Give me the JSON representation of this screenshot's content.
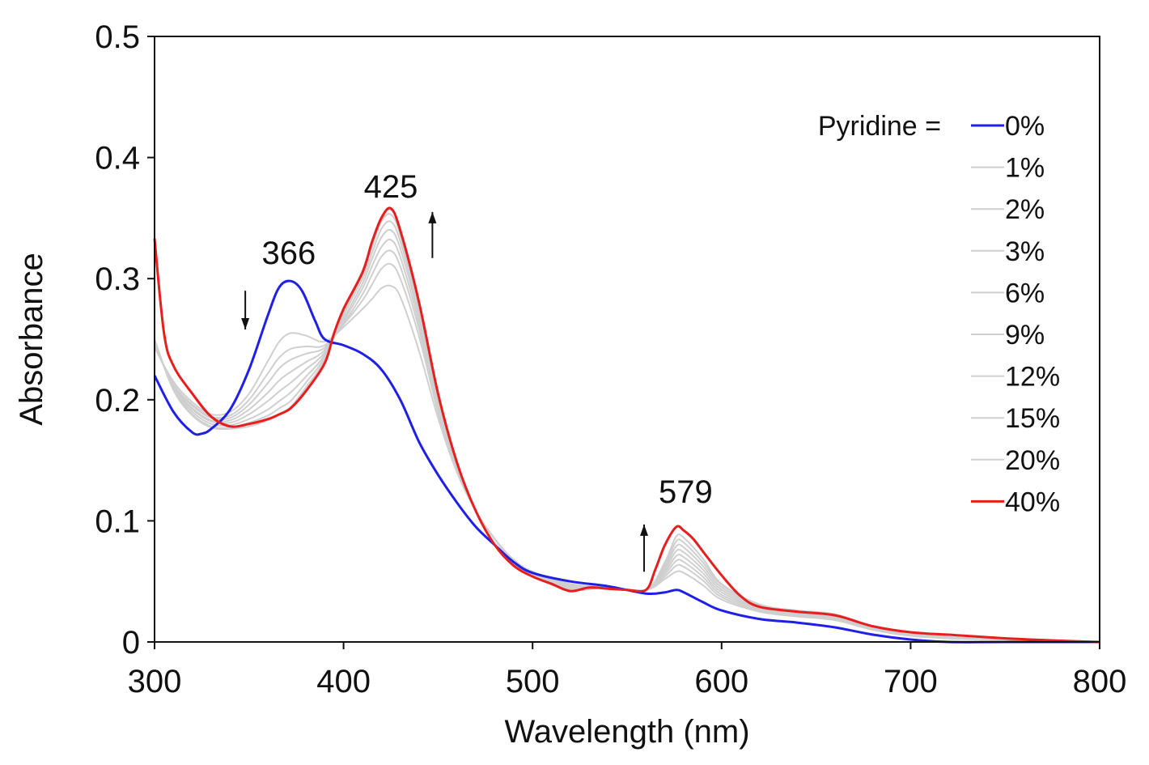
{
  "chart_data": {
    "type": "line",
    "title": "",
    "xlabel": "Wavelength (nm)",
    "ylabel": "Absorbance",
    "xlim": [
      300,
      800
    ],
    "ylim": [
      0,
      0.5
    ],
    "xticks": [
      300,
      400,
      500,
      600,
      700,
      800
    ],
    "xtick_labels": [
      "300",
      "400",
      "500",
      "600",
      "700",
      "800"
    ],
    "yticks": [
      0,
      0.1,
      0.2,
      0.3,
      0.4,
      0.5
    ],
    "ytick_labels": [
      "0",
      "0.1",
      "0.2",
      "0.3",
      "0.4",
      "0.5"
    ],
    "grid": false,
    "legend_title": "Pyridine =",
    "legend_position": "top-right",
    "series": [
      {
        "name": "0%",
        "color": "#1f1fe6",
        "x": [
          300,
          310,
          320,
          325,
          330,
          340,
          350,
          360,
          366,
          372,
          378,
          385,
          390,
          400,
          410,
          420,
          430,
          440,
          450,
          460,
          470,
          480,
          490,
          500,
          520,
          540,
          560,
          570,
          576,
          580,
          590,
          600,
          620,
          640,
          660,
          680,
          700,
          720,
          750,
          800
        ],
        "y": [
          0.22,
          0.19,
          0.173,
          0.172,
          0.176,
          0.192,
          0.225,
          0.27,
          0.293,
          0.298,
          0.29,
          0.265,
          0.25,
          0.245,
          0.238,
          0.225,
          0.2,
          0.165,
          0.138,
          0.115,
          0.095,
          0.08,
          0.066,
          0.057,
          0.05,
          0.046,
          0.04,
          0.041,
          0.043,
          0.041,
          0.033,
          0.026,
          0.019,
          0.016,
          0.012,
          0.006,
          0.002,
          0.0,
          0.0,
          0.0
        ]
      },
      {
        "name": "1%",
        "color": "#cfcfcf",
        "x": [
          300,
          310,
          320,
          330,
          340,
          350,
          360,
          366,
          372,
          380,
          390,
          400,
          410,
          415,
          420,
          425,
          430,
          440,
          450,
          460,
          470,
          480,
          490,
          500,
          520,
          540,
          560,
          570,
          576,
          580,
          590,
          600,
          620,
          640,
          660,
          680,
          700,
          720,
          750,
          800
        ],
        "y": [
          0.243,
          0.215,
          0.198,
          0.188,
          0.19,
          0.205,
          0.232,
          0.248,
          0.255,
          0.253,
          0.248,
          0.26,
          0.275,
          0.283,
          0.292,
          0.294,
          0.285,
          0.24,
          0.185,
          0.14,
          0.108,
          0.085,
          0.068,
          0.058,
          0.048,
          0.045,
          0.043,
          0.052,
          0.058,
          0.057,
          0.047,
          0.035,
          0.025,
          0.021,
          0.018,
          0.01,
          0.005,
          0.003,
          0.002,
          0.0
        ]
      },
      {
        "name": "2%",
        "color": "#cfcfcf",
        "x": [
          300,
          310,
          320,
          330,
          340,
          350,
          360,
          366,
          372,
          380,
          390,
          400,
          410,
          415,
          420,
          425,
          430,
          440,
          450,
          460,
          470,
          480,
          490,
          500,
          520,
          540,
          560,
          570,
          576,
          580,
          590,
          600,
          620,
          640,
          660,
          680,
          700,
          720,
          750,
          800
        ],
        "y": [
          0.244,
          0.213,
          0.196,
          0.186,
          0.187,
          0.2,
          0.222,
          0.235,
          0.242,
          0.244,
          0.245,
          0.262,
          0.282,
          0.295,
          0.308,
          0.312,
          0.3,
          0.252,
          0.19,
          0.142,
          0.108,
          0.085,
          0.067,
          0.057,
          0.047,
          0.045,
          0.043,
          0.054,
          0.063,
          0.062,
          0.051,
          0.037,
          0.026,
          0.022,
          0.019,
          0.011,
          0.006,
          0.003,
          0.002,
          0.0
        ]
      },
      {
        "name": "3%",
        "color": "#cfcfcf",
        "x": [
          300,
          310,
          320,
          330,
          340,
          350,
          360,
          366,
          372,
          380,
          390,
          400,
          410,
          415,
          420,
          425,
          430,
          440,
          450,
          460,
          470,
          480,
          490,
          500,
          520,
          540,
          560,
          570,
          576,
          580,
          590,
          600,
          620,
          640,
          660,
          680,
          700,
          720,
          750,
          800
        ],
        "y": [
          0.245,
          0.212,
          0.195,
          0.185,
          0.185,
          0.196,
          0.214,
          0.226,
          0.233,
          0.238,
          0.243,
          0.263,
          0.287,
          0.303,
          0.318,
          0.323,
          0.31,
          0.258,
          0.193,
          0.143,
          0.108,
          0.085,
          0.066,
          0.056,
          0.046,
          0.045,
          0.043,
          0.056,
          0.067,
          0.066,
          0.054,
          0.039,
          0.027,
          0.022,
          0.019,
          0.011,
          0.006,
          0.003,
          0.002,
          0.0
        ]
      },
      {
        "name": "6%",
        "color": "#cfcfcf",
        "x": [
          300,
          310,
          320,
          330,
          340,
          350,
          360,
          366,
          372,
          380,
          390,
          400,
          410,
          415,
          420,
          425,
          430,
          440,
          450,
          460,
          470,
          480,
          490,
          500,
          520,
          540,
          560,
          570,
          576,
          580,
          590,
          600,
          620,
          640,
          660,
          680,
          700,
          720,
          750,
          800
        ],
        "y": [
          0.246,
          0.211,
          0.193,
          0.183,
          0.183,
          0.192,
          0.206,
          0.216,
          0.223,
          0.231,
          0.241,
          0.265,
          0.292,
          0.31,
          0.326,
          0.332,
          0.318,
          0.263,
          0.196,
          0.144,
          0.108,
          0.085,
          0.066,
          0.056,
          0.046,
          0.045,
          0.043,
          0.058,
          0.071,
          0.07,
          0.057,
          0.041,
          0.028,
          0.023,
          0.02,
          0.011,
          0.006,
          0.003,
          0.002,
          0.0
        ]
      },
      {
        "name": "9%",
        "color": "#cfcfcf",
        "x": [
          300,
          310,
          320,
          330,
          340,
          350,
          360,
          366,
          372,
          380,
          390,
          400,
          410,
          415,
          420,
          425,
          430,
          440,
          450,
          460,
          470,
          480,
          490,
          500,
          520,
          540,
          560,
          570,
          576,
          580,
          590,
          600,
          620,
          640,
          660,
          680,
          700,
          720,
          750,
          800
        ],
        "y": [
          0.247,
          0.21,
          0.192,
          0.182,
          0.181,
          0.188,
          0.199,
          0.207,
          0.214,
          0.225,
          0.239,
          0.267,
          0.296,
          0.316,
          0.334,
          0.34,
          0.325,
          0.268,
          0.198,
          0.145,
          0.108,
          0.085,
          0.065,
          0.055,
          0.045,
          0.045,
          0.043,
          0.06,
          0.075,
          0.074,
          0.06,
          0.043,
          0.029,
          0.024,
          0.021,
          0.012,
          0.007,
          0.004,
          0.002,
          0.0
        ]
      },
      {
        "name": "12%",
        "color": "#cfcfcf",
        "x": [
          300,
          310,
          320,
          330,
          340,
          350,
          360,
          366,
          372,
          380,
          390,
          400,
          410,
          415,
          420,
          425,
          430,
          440,
          450,
          460,
          470,
          480,
          490,
          500,
          520,
          540,
          560,
          570,
          576,
          580,
          590,
          600,
          620,
          640,
          660,
          680,
          700,
          720,
          750,
          800
        ],
        "y": [
          0.248,
          0.209,
          0.19,
          0.18,
          0.179,
          0.184,
          0.192,
          0.199,
          0.206,
          0.219,
          0.237,
          0.27,
          0.3,
          0.321,
          0.341,
          0.347,
          0.331,
          0.272,
          0.2,
          0.146,
          0.108,
          0.085,
          0.065,
          0.055,
          0.044,
          0.045,
          0.043,
          0.062,
          0.079,
          0.078,
          0.063,
          0.045,
          0.03,
          0.025,
          0.022,
          0.012,
          0.007,
          0.004,
          0.002,
          0.0
        ]
      },
      {
        "name": "15%",
        "color": "#cfcfcf",
        "x": [
          300,
          310,
          320,
          330,
          340,
          350,
          360,
          366,
          372,
          380,
          390,
          400,
          410,
          415,
          420,
          425,
          430,
          440,
          450,
          460,
          470,
          480,
          490,
          500,
          520,
          540,
          560,
          570,
          576,
          580,
          590,
          600,
          620,
          640,
          660,
          680,
          700,
          720,
          750,
          800
        ],
        "y": [
          0.249,
          0.208,
          0.188,
          0.178,
          0.177,
          0.181,
          0.187,
          0.193,
          0.199,
          0.214,
          0.235,
          0.272,
          0.304,
          0.326,
          0.347,
          0.353,
          0.336,
          0.275,
          0.202,
          0.147,
          0.108,
          0.085,
          0.064,
          0.054,
          0.044,
          0.045,
          0.043,
          0.064,
          0.083,
          0.082,
          0.066,
          0.047,
          0.031,
          0.025,
          0.022,
          0.012,
          0.007,
          0.004,
          0.002,
          0.0
        ]
      },
      {
        "name": "20%",
        "color": "#cfcfcf",
        "x": [
          300,
          310,
          320,
          330,
          340,
          350,
          360,
          366,
          372,
          380,
          390,
          400,
          410,
          415,
          420,
          425,
          430,
          440,
          450,
          460,
          470,
          480,
          490,
          500,
          520,
          540,
          560,
          570,
          576,
          580,
          590,
          600,
          620,
          640,
          660,
          680,
          700,
          720,
          750,
          800
        ],
        "y": [
          0.25,
          0.208,
          0.187,
          0.177,
          0.176,
          0.178,
          0.183,
          0.188,
          0.194,
          0.21,
          0.233,
          0.274,
          0.307,
          0.33,
          0.351,
          0.357,
          0.34,
          0.278,
          0.203,
          0.147,
          0.108,
          0.085,
          0.064,
          0.054,
          0.043,
          0.045,
          0.043,
          0.066,
          0.087,
          0.086,
          0.069,
          0.048,
          0.031,
          0.026,
          0.023,
          0.013,
          0.008,
          0.004,
          0.002,
          0.0
        ]
      },
      {
        "name": "40%",
        "color": "#e61e1e",
        "x": [
          300,
          305,
          310,
          320,
          330,
          340,
          350,
          360,
          366,
          372,
          380,
          390,
          395,
          400,
          410,
          415,
          420,
          425,
          430,
          440,
          450,
          460,
          470,
          480,
          490,
          500,
          510,
          520,
          530,
          540,
          550,
          560,
          565,
          570,
          576,
          580,
          585,
          590,
          600,
          610,
          620,
          640,
          660,
          680,
          700,
          720,
          750,
          780,
          800
        ],
        "y": [
          0.333,
          0.255,
          0.228,
          0.205,
          0.186,
          0.178,
          0.18,
          0.184,
          0.188,
          0.193,
          0.207,
          0.23,
          0.255,
          0.275,
          0.305,
          0.33,
          0.35,
          0.358,
          0.34,
          0.28,
          0.205,
          0.148,
          0.108,
          0.08,
          0.063,
          0.054,
          0.048,
          0.042,
          0.045,
          0.044,
          0.043,
          0.043,
          0.06,
          0.08,
          0.095,
          0.092,
          0.085,
          0.075,
          0.055,
          0.038,
          0.029,
          0.025,
          0.022,
          0.013,
          0.008,
          0.006,
          0.003,
          0.001,
          0.0
        ]
      }
    ],
    "annotations": [
      {
        "text": "366",
        "x": 371,
        "y": 0.312
      },
      {
        "text": "425",
        "x": 425,
        "y": 0.367
      },
      {
        "text": "579",
        "x": 581,
        "y": 0.115
      }
    ],
    "arrows": [
      {
        "direction": "down",
        "x": 348,
        "y_from": 0.29,
        "y_to": 0.258
      },
      {
        "direction": "up",
        "x": 447,
        "y_from": 0.317,
        "y_to": 0.355
      },
      {
        "direction": "up",
        "x": 559,
        "y_from": 0.058,
        "y_to": 0.097
      }
    ]
  }
}
